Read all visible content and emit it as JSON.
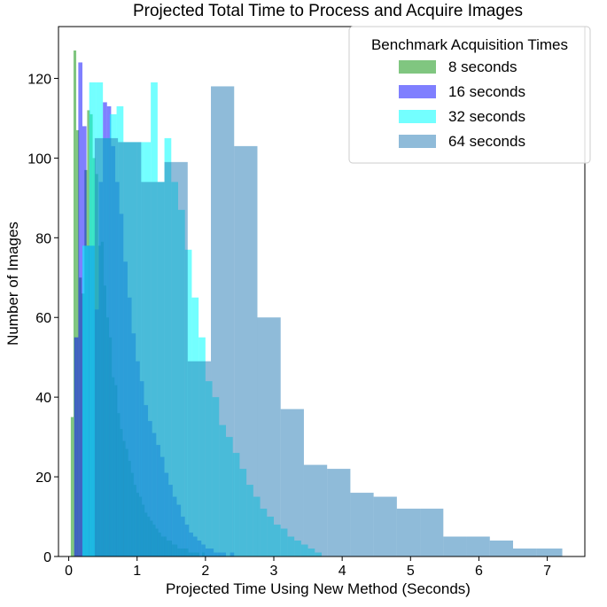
{
  "chart_data": {
    "type": "histogram",
    "title": "Projected Total Time to Process and Acquire Images",
    "xlabel": "Projected Time Using New Method (Seconds)",
    "ylabel": "Number of Images",
    "xlim": [
      -0.15,
      7.55
    ],
    "ylim": [
      0,
      133
    ],
    "xticks": [
      0,
      1,
      2,
      3,
      4,
      5,
      6,
      7
    ],
    "yticks": [
      0,
      20,
      40,
      60,
      80,
      100,
      120
    ],
    "grid": false,
    "legend": {
      "title": "Benchmark Acquisition Times",
      "placement": "top-right"
    },
    "series": [
      {
        "name": "8 seconds",
        "color": "#2ca02c",
        "opacity": 0.6,
        "edges": [
          0.03,
          0.07,
          0.11,
          0.15,
          0.19,
          0.23,
          0.27,
          0.31,
          0.35,
          0.39,
          0.43,
          0.47,
          0.51,
          0.55,
          0.59,
          0.63,
          0.67,
          0.71,
          0.75,
          0.79,
          0.83,
          0.87,
          0.91,
          0.95,
          0.99,
          1.03,
          1.07,
          1.11,
          1.15,
          1.19,
          1.23,
          1.27,
          1.31,
          1.35,
          1.39,
          1.43,
          1.47,
          1.51,
          1.55,
          1.59,
          1.63,
          1.67,
          1.71,
          1.75,
          1.79,
          1.83,
          1.87,
          1.91,
          1.95,
          1.99,
          2.03
        ],
        "counts": [
          35,
          127,
          107,
          70,
          66,
          97,
          112,
          111,
          100,
          96,
          78,
          79,
          68,
          60,
          55,
          45,
          43,
          36,
          32,
          29,
          27,
          24,
          21,
          18,
          16,
          15,
          13,
          11,
          10,
          9,
          8,
          7,
          6,
          5,
          5,
          4,
          4,
          3,
          3,
          2,
          2,
          2,
          2,
          1,
          1,
          1,
          1,
          0,
          1,
          0
        ]
      },
      {
        "name": "16 seconds",
        "color": "#0000ff",
        "opacity": 0.5,
        "edges": [
          0.08,
          0.14,
          0.2,
          0.26,
          0.32,
          0.38,
          0.44,
          0.5,
          0.56,
          0.62,
          0.68,
          0.74,
          0.8,
          0.86,
          0.92,
          0.98,
          1.04,
          1.1,
          1.16,
          1.22,
          1.28,
          1.34,
          1.4,
          1.46,
          1.52,
          1.58,
          1.64,
          1.7,
          1.76,
          1.82,
          1.88,
          1.94,
          2.0,
          2.06,
          2.12,
          2.18,
          2.24,
          2.3,
          2.36,
          2.42,
          2.48
        ],
        "counts": [
          55,
          124,
          108,
          78,
          78,
          62,
          94,
          114,
          113,
          103,
          94,
          86,
          74,
          65,
          56,
          49,
          44,
          38,
          34,
          31,
          28,
          25,
          21,
          18,
          15,
          13,
          10,
          8,
          6,
          5,
          4,
          3,
          2,
          2,
          1,
          1,
          1,
          0,
          1,
          0
        ]
      },
      {
        "name": "32 seconds",
        "color": "#00ffff",
        "opacity": 0.55,
        "edges": [
          0.2,
          0.3,
          0.4,
          0.5,
          0.6,
          0.7,
          0.8,
          0.9,
          1.0,
          1.1,
          1.2,
          1.3,
          1.4,
          1.5,
          1.6,
          1.7,
          1.8,
          1.9,
          2.0,
          2.1,
          2.2,
          2.3,
          2.4,
          2.5,
          2.6,
          2.7,
          2.8,
          2.9,
          3.0,
          3.1,
          3.2,
          3.3,
          3.4,
          3.5,
          3.6,
          3.7
        ],
        "counts": [
          78,
          119,
          119,
          105,
          111,
          113,
          104,
          104,
          104,
          104,
          119,
          94,
          105,
          94,
          87,
          77,
          65,
          55,
          44,
          40,
          33,
          30,
          26,
          22,
          18,
          15,
          12,
          10,
          8,
          7,
          5,
          4,
          3,
          2,
          1
        ]
      },
      {
        "name": "64 seconds",
        "color": "#1f77b4",
        "opacity": 0.5,
        "edges": [
          0.38,
          0.72,
          1.06,
          1.4,
          1.74,
          2.08,
          2.42,
          2.76,
          3.1,
          3.44,
          3.78,
          4.12,
          4.46,
          4.8,
          5.14,
          5.48,
          5.82,
          6.16,
          6.5,
          6.84,
          7.22
        ],
        "counts": [
          105,
          104,
          94,
          99,
          49,
          118,
          103,
          60,
          37,
          23,
          22,
          16,
          15,
          12,
          12,
          5,
          5,
          4,
          2,
          2
        ]
      }
    ]
  }
}
